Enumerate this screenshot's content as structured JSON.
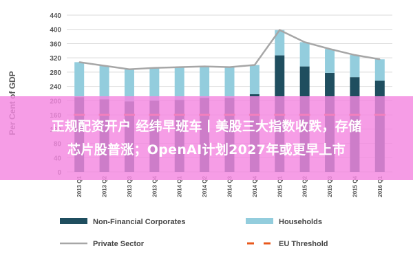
{
  "chart_data": {
    "type": "bar",
    "stacked": true,
    "ylabel": "Per Cent of GDP",
    "ylim": [
      0,
      440
    ],
    "yticks": [
      0,
      40,
      80,
      120,
      160,
      200,
      240,
      280,
      320,
      360,
      400,
      440
    ],
    "grid": true,
    "legend_position": "bottom",
    "categories": [
      "2013 Q1",
      "2013 Q2",
      "2013 Q3",
      "2013 Q4",
      "2014 Q1",
      "2014 Q2",
      "2014 Q3",
      "2014 Q4",
      "2015 Q1",
      "2015 Q2",
      "2015 Q3",
      "2015 Q4",
      "2016 Q1"
    ],
    "series": [
      {
        "name": "Non-Financial Corporates",
        "kind": "bar",
        "color": "#1f4e5f",
        "values": [
          210,
          204,
          198,
          200,
          202,
          208,
          208,
          218,
          327,
          296,
          278,
          266,
          256
        ]
      },
      {
        "name": "Households",
        "kind": "bar",
        "color": "#93cddd",
        "values": [
          98,
          94,
          90,
          92,
          92,
          88,
          86,
          82,
          71,
          68,
          67,
          62,
          60
        ]
      },
      {
        "name": "Private Sector",
        "kind": "line",
        "color": "#a6a6a6",
        "values": [
          308,
          298,
          288,
          292,
          294,
          296,
          294,
          300,
          398,
          364,
          345,
          328,
          316
        ]
      },
      {
        "name": "EU Threshold",
        "kind": "dash",
        "color": "#e8581c",
        "values": [
          160,
          160,
          160,
          160,
          160,
          160,
          160,
          160,
          160,
          160,
          160,
          160,
          160
        ]
      }
    ]
  },
  "overlay": {
    "line1": "正规配资开户 经纬早班车丨美股三大指数收跌，存储",
    "line2": "芯片股普涨；OpenAI计划2027年或更早上市"
  }
}
